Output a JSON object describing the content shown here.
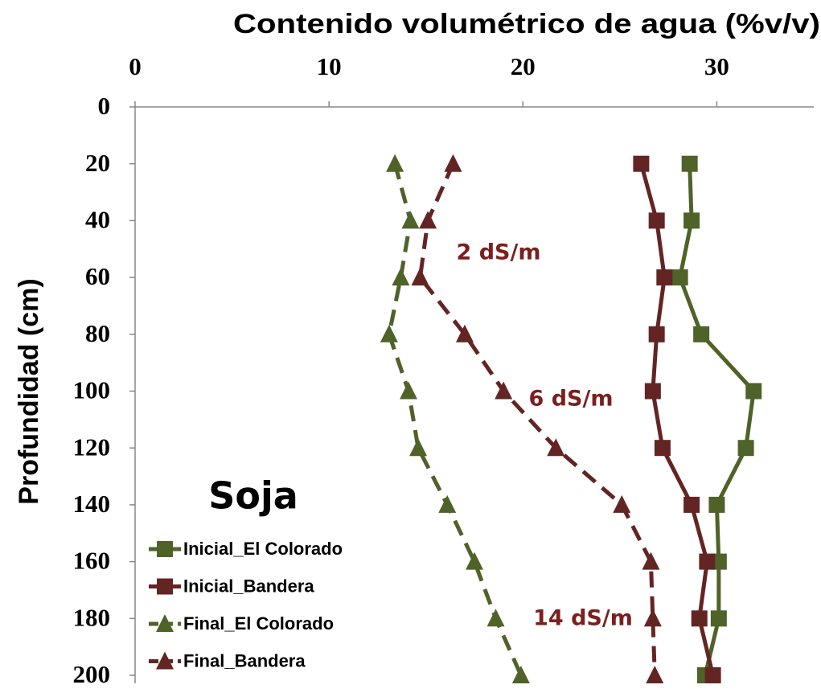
{
  "chart_data": {
    "type": "line",
    "title": "Soja",
    "x_label": "Contenido volumétrico de agua (%v/v)",
    "y_label": "Profundidad (cm)",
    "xlim": [
      0,
      35
    ],
    "xticks": [
      0,
      10,
      20,
      30
    ],
    "ylim": [
      0,
      200
    ],
    "yticks": [
      0,
      20,
      40,
      60,
      80,
      100,
      120,
      140,
      160,
      180,
      200
    ],
    "y_inverted": true,
    "grid": false,
    "legend": "lower left",
    "y": [
      20,
      40,
      60,
      80,
      100,
      120,
      140,
      160,
      180,
      200
    ],
    "series": [
      {
        "name": "Inicial_El Colorado",
        "color": "#4f6228",
        "marker": "square",
        "linestyle": "solid",
        "values": [
          28.6,
          28.7,
          28.1,
          29.2,
          31.9,
          31.5,
          30.0,
          30.1,
          30.1,
          29.4
        ]
      },
      {
        "name": "Inicial_Bandera",
        "color": "#632523",
        "marker": "square",
        "linestyle": "solid",
        "values": [
          26.1,
          26.9,
          27.3,
          26.9,
          26.7,
          27.2,
          28.7,
          29.5,
          29.1,
          29.8
        ]
      },
      {
        "name": "Final_El Colorado",
        "color": "#4f6228",
        "marker": "triangle",
        "linestyle": "dashed",
        "values": [
          13.4,
          14.2,
          13.7,
          13.1,
          14.1,
          14.6,
          16.1,
          17.5,
          18.6,
          19.9
        ]
      },
      {
        "name": "Final_Bandera",
        "color": "#632523",
        "marker": "triangle",
        "linestyle": "dashed",
        "values": [
          16.4,
          15.1,
          14.7,
          17.0,
          19.0,
          21.7,
          25.1,
          26.6,
          26.7,
          26.8
        ]
      }
    ],
    "annotations": [
      "2 dS/m",
      "6 dS/m",
      "14 dS/m"
    ]
  }
}
